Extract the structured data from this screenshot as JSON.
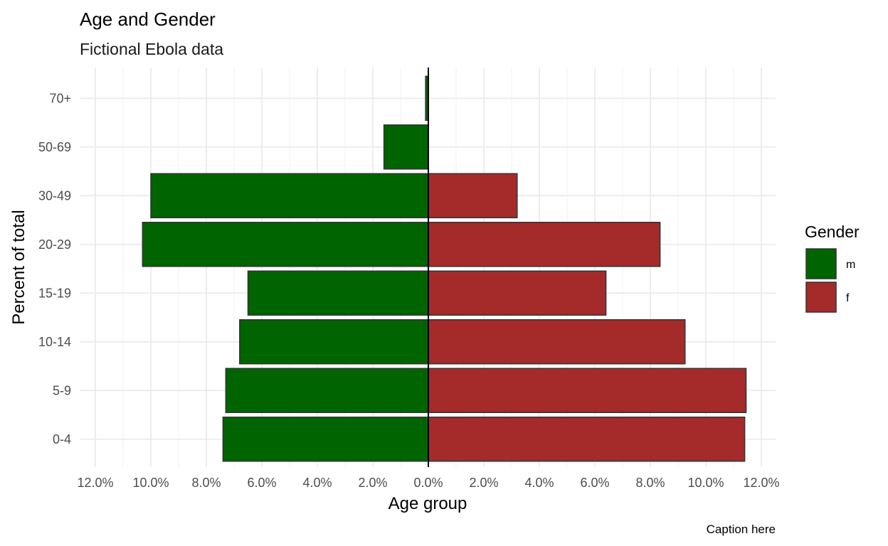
{
  "chart_data": {
    "type": "bar",
    "orientation": "horizontal",
    "title": "Age and Gender",
    "subtitle": "Fictional Ebola data",
    "xlabel": "Age group",
    "ylabel": "Percent of total",
    "caption": "Caption here",
    "categories": [
      "0-4",
      "5-9",
      "10-14",
      "15-19",
      "20-29",
      "30-49",
      "50-69",
      "70+"
    ],
    "series": [
      {
        "name": "m",
        "color": "#006400",
        "values": [
          -7.4,
          -7.3,
          -6.8,
          -6.5,
          -10.3,
          -10.0,
          -1.6,
          -0.1
        ]
      },
      {
        "name": "f",
        "color": "#A52A2A",
        "values": [
          11.4,
          11.45,
          9.25,
          6.4,
          8.35,
          3.2,
          0.0,
          0.0
        ]
      }
    ],
    "xlim": [
      -12,
      12
    ],
    "xticks": [
      -12,
      -10,
      -8,
      -6,
      -4,
      -2,
      0,
      2,
      4,
      6,
      8,
      10,
      12
    ],
    "xtick_labels": [
      "12.0%",
      "10.0%",
      "8.0%",
      "6.0%",
      "4.0%",
      "2.0%",
      "0.0%",
      "2.0%",
      "4.0%",
      "6.0%",
      "8.0%",
      "10.0%",
      "12.0%"
    ],
    "grid": true,
    "zero_line": true,
    "legend": {
      "title": "Gender",
      "position": "right"
    },
    "bar_outline_color": "#333333"
  }
}
